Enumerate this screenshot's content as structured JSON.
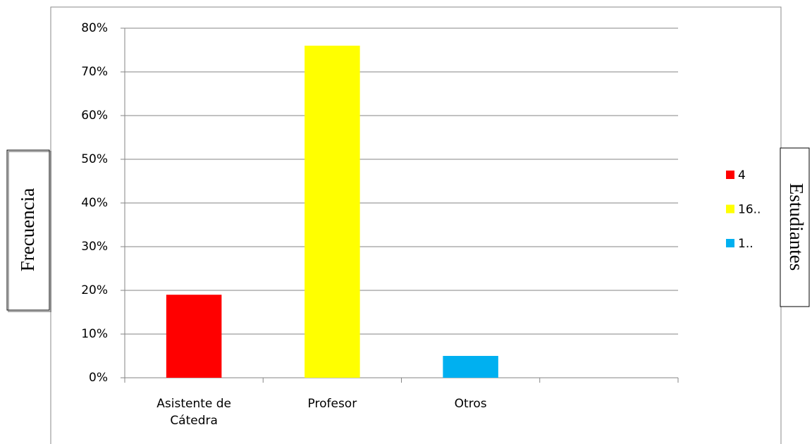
{
  "chart_data": {
    "type": "bar",
    "y_axis_title": "Frecuencia",
    "right_title": "Estudiantes",
    "categories": [
      "Asistente de Cátedra",
      "Profesor",
      "Otros",
      null
    ],
    "values": [
      19,
      76,
      5,
      null
    ],
    "colors": [
      "#ff0000",
      "#ffff00",
      "#00b0f0"
    ],
    "legend_labels": [
      "4",
      "16..",
      "1.."
    ],
    "ylim": [
      0,
      80
    ],
    "yticks": [
      {
        "value": 0,
        "label": "0%"
      },
      {
        "value": 10,
        "label": "10%"
      },
      {
        "value": 20,
        "label": "20%"
      },
      {
        "value": 30,
        "label": "30%"
      },
      {
        "value": 40,
        "label": "40%"
      },
      {
        "value": 50,
        "label": "50%"
      },
      {
        "value": 60,
        "label": "60%"
      },
      {
        "value": 70,
        "label": "70%"
      },
      {
        "value": 80,
        "label": "80%"
      }
    ],
    "grid": true,
    "legend": "right"
  }
}
